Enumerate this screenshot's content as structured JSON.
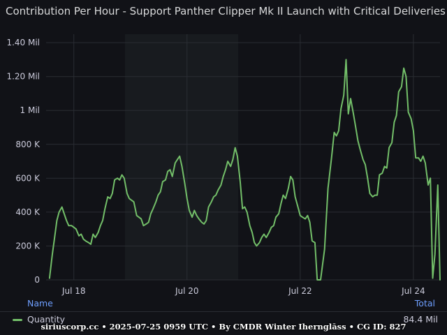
{
  "title": "Contribution Per Hour - Support Panther Clipper Mk II Launch with Critical Deliveries",
  "legend": {
    "name_header": "Name",
    "total_header": "Total",
    "series_name": "Quantity",
    "series_total": "84.4 Mil"
  },
  "footer": "siriuscorp.cc • 2025-07-25 0959 UTC • By CMDR Winter Ihernglāss • CG ID: 827",
  "colors": {
    "series": "#73bf69",
    "background": "#111217",
    "grid": "#2a2d33",
    "accent": "#6e9fff"
  },
  "chart_data": {
    "type": "line",
    "title": "Contribution Per Hour - Support Panther Clipper Mk II Launch with Critical Deliveries",
    "xlabel": "",
    "ylabel": "",
    "ylim": [
      0,
      1450000
    ],
    "xlim": [
      -0.49,
      6.47
    ],
    "yticks": [
      {
        "value": 0,
        "label": "0"
      },
      {
        "value": 200000,
        "label": "200 K"
      },
      {
        "value": 400000,
        "label": "400 K"
      },
      {
        "value": 600000,
        "label": "600 K"
      },
      {
        "value": 800000,
        "label": "800 K"
      },
      {
        "value": 1000000,
        "label": "1 Mil"
      },
      {
        "value": 1200000,
        "label": "1.20 Mil"
      },
      {
        "value": 1400000,
        "label": "1.40 Mil"
      }
    ],
    "xticks": [
      {
        "value": 0,
        "label": "Jul 18"
      },
      {
        "value": 2,
        "label": "Jul 20"
      },
      {
        "value": 4,
        "label": "Jul 22"
      },
      {
        "value": 6,
        "label": "Jul 24"
      }
    ],
    "grid": true,
    "legend_position": "bottom",
    "series": [
      {
        "name": "Quantity",
        "x": [
          -0.43,
          -0.38,
          -0.34,
          -0.3,
          -0.26,
          -0.21,
          -0.17,
          -0.13,
          -0.09,
          -0.04,
          0.0,
          0.04,
          0.09,
          0.13,
          0.17,
          0.21,
          0.26,
          0.3,
          0.34,
          0.38,
          0.43,
          0.47,
          0.51,
          0.55,
          0.6,
          0.64,
          0.68,
          0.72,
          0.77,
          0.81,
          0.85,
          0.89,
          0.94,
          0.98,
          1.02,
          1.06,
          1.11,
          1.15,
          1.19,
          1.23,
          1.28,
          1.32,
          1.36,
          1.4,
          1.45,
          1.49,
          1.53,
          1.57,
          1.62,
          1.66,
          1.7,
          1.74,
          1.79,
          1.83,
          1.87,
          1.91,
          1.96,
          2.0,
          2.04,
          2.09,
          2.13,
          2.17,
          2.21,
          2.26,
          2.3,
          2.34,
          2.38,
          2.43,
          2.47,
          2.51,
          2.55,
          2.6,
          2.64,
          2.68,
          2.72,
          2.77,
          2.81,
          2.85,
          2.89,
          2.94,
          2.98,
          3.02,
          3.06,
          3.11,
          3.15,
          3.19,
          3.23,
          3.28,
          3.32,
          3.36,
          3.4,
          3.45,
          3.49,
          3.53,
          3.57,
          3.62,
          3.66,
          3.7,
          3.74,
          3.79,
          3.83,
          3.87,
          3.91,
          3.96,
          4.0,
          4.04,
          4.09,
          4.13,
          4.17,
          4.21,
          4.26,
          4.3,
          4.36,
          4.43,
          4.49,
          4.55,
          4.6,
          4.64,
          4.68,
          4.72,
          4.77,
          4.81,
          4.85,
          4.89,
          4.94,
          4.98,
          5.02,
          5.06,
          5.11,
          5.15,
          5.19,
          5.23,
          5.28,
          5.32,
          5.36,
          5.4,
          5.45,
          5.49,
          5.53,
          5.57,
          5.62,
          5.66,
          5.7,
          5.74,
          5.79,
          5.83,
          5.87,
          5.91,
          5.96,
          6.0,
          6.04,
          6.09,
          6.13,
          6.17,
          6.21,
          6.26,
          6.3,
          6.34,
          6.38,
          6.43,
          6.47
        ],
        "values": [
          10000,
          150000,
          250000,
          350000,
          400000,
          430000,
          390000,
          350000,
          320000,
          320000,
          310000,
          300000,
          260000,
          270000,
          240000,
          230000,
          220000,
          210000,
          270000,
          250000,
          280000,
          320000,
          350000,
          420000,
          490000,
          480000,
          510000,
          590000,
          600000,
          590000,
          620000,
          600000,
          510000,
          480000,
          470000,
          460000,
          380000,
          370000,
          360000,
          320000,
          330000,
          340000,
          390000,
          420000,
          460000,
          500000,
          520000,
          580000,
          590000,
          640000,
          650000,
          610000,
          690000,
          710000,
          730000,
          670000,
          570000,
          480000,
          410000,
          370000,
          410000,
          380000,
          360000,
          340000,
          330000,
          350000,
          430000,
          460000,
          490000,
          500000,
          530000,
          560000,
          610000,
          650000,
          700000,
          670000,
          710000,
          780000,
          730000,
          580000,
          420000,
          430000,
          400000,
          320000,
          280000,
          220000,
          200000,
          220000,
          250000,
          270000,
          250000,
          280000,
          310000,
          320000,
          370000,
          390000,
          450000,
          500000,
          480000,
          540000,
          610000,
          590000,
          490000,
          430000,
          380000,
          370000,
          360000,
          380000,
          340000,
          230000,
          220000,
          0,
          0,
          180000,
          540000,
          710000,
          870000,
          850000,
          880000,
          1010000,
          1090000,
          1300000,
          980000,
          1070000,
          980000,
          900000,
          820000,
          770000,
          710000,
          680000,
          600000,
          510000,
          490000,
          500000,
          500000,
          620000,
          630000,
          670000,
          660000,
          780000,
          810000,
          930000,
          970000,
          1110000,
          1140000,
          1250000,
          1200000,
          990000,
          950000,
          880000,
          720000,
          720000,
          700000,
          730000,
          690000,
          560000,
          600000,
          10000,
          150000,
          560000,
          0
        ]
      }
    ]
  }
}
